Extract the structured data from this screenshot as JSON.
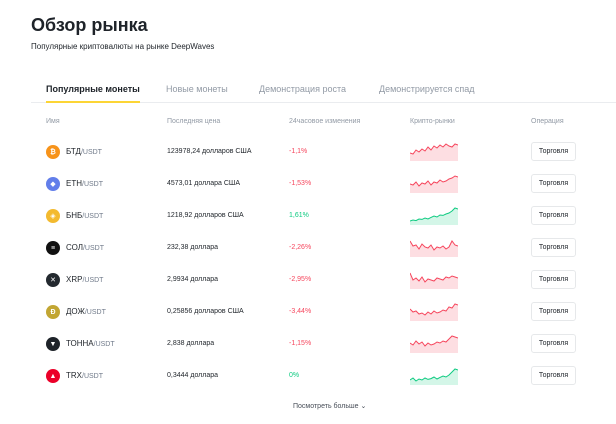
{
  "header": {
    "title": "Обзор рынка",
    "subtitle": "Популярные криптовалюты на рынке DeepWaves"
  },
  "tabs": [
    {
      "label": "Популярные монеты",
      "active": true
    },
    {
      "label": "Новые монеты",
      "active": false
    },
    {
      "label": "Демонстрация роста",
      "active": false
    },
    {
      "label": "Демонстрируется спад",
      "active": false
    }
  ],
  "columns": {
    "name": "Имя",
    "price": "Последняя цена",
    "change": "24часовое изменения",
    "chart": "Крипто-рынки",
    "action": "Операция"
  },
  "colors": {
    "up": "#0ecb81",
    "down": "#f6465d",
    "accent": "#fcd535"
  },
  "rows": [
    {
      "icon": "btc-icon",
      "icon_color": "#f7931a",
      "glyph": "₿",
      "base": "БТД",
      "quote": "/USDT",
      "price": "123978,24 долларов США",
      "change": "-1,1%",
      "direction": "down",
      "trade": "Торговля",
      "spark": [
        0.4,
        0.35,
        0.55,
        0.45,
        0.6,
        0.5,
        0.7,
        0.55,
        0.75,
        0.65,
        0.8,
        0.7,
        0.85,
        0.75,
        0.7,
        0.85,
        0.8
      ]
    },
    {
      "icon": "eth-icon",
      "icon_color": "#627eea",
      "glyph": "◆",
      "base": "ETH",
      "quote": "/USDT",
      "price": "4573,01 доллара США",
      "change": "-1,53%",
      "direction": "down",
      "trade": "Торговля",
      "spark": [
        0.45,
        0.4,
        0.55,
        0.35,
        0.5,
        0.45,
        0.6,
        0.4,
        0.55,
        0.5,
        0.65,
        0.55,
        0.6,
        0.7,
        0.75,
        0.85,
        0.8
      ]
    },
    {
      "icon": "bnb-icon",
      "icon_color": "#f3ba2f",
      "glyph": "◈",
      "base": "БНБ",
      "quote": "/USDT",
      "price": "1218,92 долларов США",
      "change": "1,61%",
      "direction": "up",
      "trade": "Торговля",
      "spark": [
        0.2,
        0.25,
        0.22,
        0.3,
        0.28,
        0.35,
        0.3,
        0.38,
        0.45,
        0.4,
        0.5,
        0.48,
        0.55,
        0.6,
        0.7,
        0.85,
        0.8
      ]
    },
    {
      "icon": "sol-icon",
      "icon_color": "#111111",
      "glyph": "≡",
      "base": "СОЛ",
      "quote": "/USDT",
      "price": "232,38 доллара",
      "change": "-2,26%",
      "direction": "down",
      "trade": "Торговля",
      "spark": [
        0.8,
        0.55,
        0.6,
        0.4,
        0.65,
        0.5,
        0.45,
        0.6,
        0.35,
        0.5,
        0.45,
        0.55,
        0.4,
        0.5,
        0.8,
        0.6,
        0.55
      ]
    },
    {
      "icon": "xrp-icon",
      "icon_color": "#23292f",
      "glyph": "✕",
      "base": "XRP",
      "quote": "/USDT",
      "price": "2,9934 доллара",
      "change": "-2,95%",
      "direction": "down",
      "trade": "Торговля",
      "spark": [
        0.8,
        0.45,
        0.55,
        0.4,
        0.6,
        0.35,
        0.5,
        0.45,
        0.4,
        0.55,
        0.5,
        0.45,
        0.6,
        0.55,
        0.65,
        0.6,
        0.55
      ]
    },
    {
      "icon": "doge-icon",
      "icon_color": "#c2a633",
      "glyph": "Ð",
      "base": "ДОЖ",
      "quote": "/USDT",
      "price": "0,25856 долларов США",
      "change": "-3,44%",
      "direction": "down",
      "trade": "Торговля",
      "spark": [
        0.6,
        0.45,
        0.5,
        0.35,
        0.4,
        0.3,
        0.45,
        0.35,
        0.5,
        0.4,
        0.45,
        0.55,
        0.5,
        0.7,
        0.65,
        0.85,
        0.8
      ]
    },
    {
      "icon": "ton-icon",
      "icon_color": "#1e2329",
      "glyph": "▼",
      "base": "ТОННА",
      "quote": "/USDT",
      "price": "2,838 доллара",
      "change": "-1,15%",
      "direction": "down",
      "trade": "Торговля",
      "spark": [
        0.5,
        0.4,
        0.6,
        0.45,
        0.55,
        0.35,
        0.5,
        0.4,
        0.45,
        0.55,
        0.5,
        0.6,
        0.55,
        0.7,
        0.85,
        0.8,
        0.75
      ]
    },
    {
      "icon": "trx-icon",
      "icon_color": "#eb0029",
      "glyph": "▲",
      "base": "TRX",
      "quote": "/USDT",
      "price": "0,3444 доллара",
      "change": "0%",
      "direction": "up",
      "trade": "Торговля",
      "spark": [
        0.25,
        0.35,
        0.2,
        0.3,
        0.25,
        0.35,
        0.28,
        0.32,
        0.4,
        0.3,
        0.38,
        0.45,
        0.4,
        0.5,
        0.65,
        0.8,
        0.75
      ]
    }
  ],
  "view_more": "Посмотреть больше ⌄"
}
